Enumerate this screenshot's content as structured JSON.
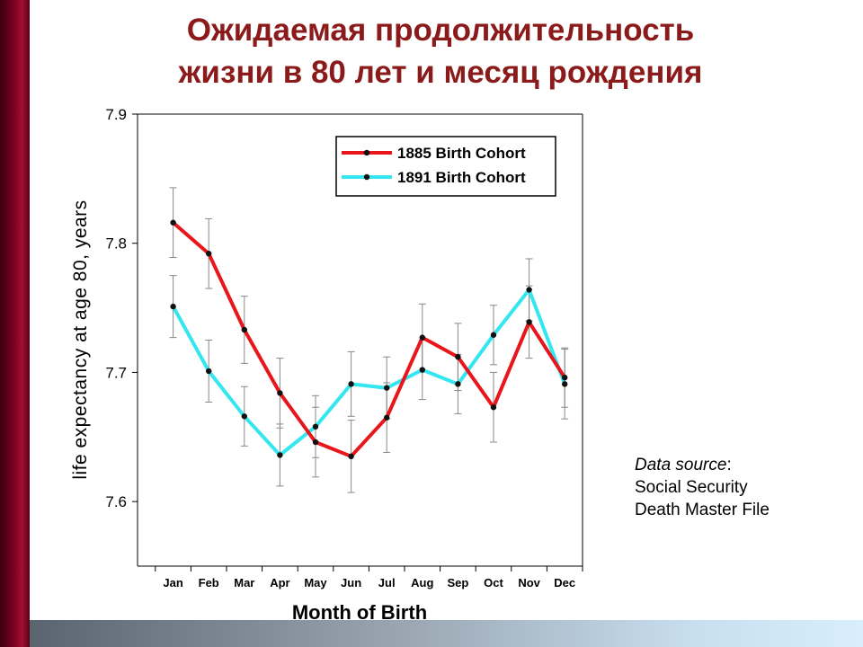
{
  "slide": {
    "title_line1": "Ожидаемая продолжительность",
    "title_line2": "жизни в 80 лет и месяц рождения",
    "source_label": "Data source",
    "source_colon": ":",
    "source_line2": "Social Security",
    "source_line3": "Death Master File"
  },
  "colors": {
    "title": "#8b1a1a",
    "series1": "#e8151a",
    "series2": "#33e6f0",
    "error_bar": "#888888"
  },
  "chart_data": {
    "type": "line",
    "xlabel": "Month of Birth",
    "ylabel": "life expectancy at age 80, years",
    "ylim": [
      7.55,
      7.9
    ],
    "yticks": [
      7.6,
      7.7,
      7.8,
      7.9
    ],
    "ytick_labels": [
      "7.6",
      "7.7",
      "7.8",
      "7.9"
    ],
    "categories": [
      "Jan",
      "Feb",
      "Mar",
      "Apr",
      "May",
      "Jun",
      "Jul",
      "Aug",
      "Sep",
      "Oct",
      "Nov",
      "Dec"
    ],
    "legend_position": "top-right",
    "grid": false,
    "series": [
      {
        "name": "1885 Birth Cohort",
        "color": "#e8151a",
        "values": [
          7.816,
          7.792,
          7.733,
          7.684,
          7.646,
          7.635,
          7.665,
          7.727,
          7.712,
          7.673,
          7.739,
          7.696
        ],
        "error": [
          0.027,
          0.027,
          0.026,
          0.027,
          0.027,
          0.028,
          0.027,
          0.026,
          0.026,
          0.027,
          0.028,
          0.023
        ]
      },
      {
        "name": "1891 Birth Cohort",
        "color": "#33e6f0",
        "values": [
          7.751,
          7.701,
          7.666,
          7.636,
          7.658,
          7.691,
          7.688,
          7.702,
          7.691,
          7.729,
          7.764,
          7.691
        ],
        "error": [
          0.024,
          0.024,
          0.023,
          0.024,
          0.024,
          0.025,
          0.024,
          0.023,
          0.023,
          0.023,
          0.024,
          0.027
        ]
      }
    ]
  }
}
